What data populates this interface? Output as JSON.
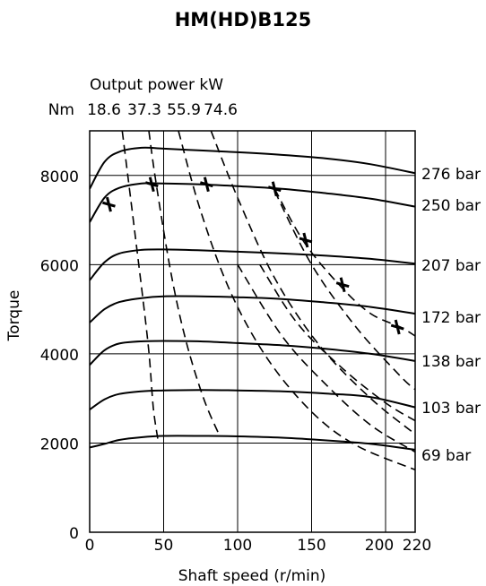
{
  "chart_data": {
    "type": "line",
    "title": "HM(HD)B125",
    "xlabel": "Shaft speed (r/min)",
    "ylabel": "Torque",
    "xlim": [
      0,
      220
    ],
    "ylim": [
      0,
      9000
    ],
    "x_ticks": [
      {
        "value": 0,
        "label": "0"
      },
      {
        "value": 50,
        "label": "50"
      },
      {
        "value": 100,
        "label": "100"
      },
      {
        "value": 150,
        "label": "150"
      },
      {
        "value": 200,
        "label": "200"
      },
      {
        "value": 220,
        "label": "220"
      }
    ],
    "y_ticks": [
      {
        "value": 0,
        "label": "0"
      },
      {
        "value": 2000,
        "label": "2000"
      },
      {
        "value": 4000,
        "label": "4000"
      },
      {
        "value": 6000,
        "label": "6000"
      },
      {
        "value": 8000,
        "label": "8000"
      }
    ],
    "vertical_gridlines": [
      50,
      100,
      150,
      200
    ],
    "horizontal_gridlines": [
      2000,
      4000,
      6000,
      8000
    ],
    "secondary_axis": {
      "title": "Output power kW",
      "unit_label": "Nm",
      "labels": [
        {
          "label": "18.6",
          "x": 4
        },
        {
          "label": "37.3",
          "x": 25
        },
        {
          "label": "55.9",
          "x": 50
        },
        {
          "label": "74.6",
          "x": 72
        }
      ]
    },
    "pressure_curves": [
      {
        "name": "276 bar",
        "x": [
          0,
          10,
          20,
          35,
          50,
          75,
          100,
          130,
          160,
          190,
          220
        ],
        "y": [
          7700,
          8300,
          8530,
          8620,
          8600,
          8560,
          8520,
          8460,
          8380,
          8250,
          8050
        ]
      },
      {
        "name": "250 bar",
        "x": [
          0,
          10,
          20,
          35,
          50,
          75,
          100,
          130,
          160,
          190,
          220
        ],
        "y": [
          6950,
          7500,
          7720,
          7820,
          7820,
          7800,
          7760,
          7700,
          7600,
          7480,
          7300
        ]
      },
      {
        "name": "207 bar",
        "x": [
          0,
          10,
          20,
          35,
          50,
          75,
          100,
          130,
          160,
          190,
          220
        ],
        "y": [
          5650,
          6050,
          6250,
          6330,
          6340,
          6320,
          6290,
          6250,
          6200,
          6130,
          6020
        ]
      },
      {
        "name": "172 bar",
        "x": [
          0,
          10,
          20,
          35,
          50,
          75,
          100,
          130,
          160,
          190,
          220
        ],
        "y": [
          4700,
          5000,
          5160,
          5250,
          5290,
          5290,
          5270,
          5230,
          5150,
          5050,
          4900
        ]
      },
      {
        "name": "138 bar",
        "x": [
          0,
          10,
          20,
          35,
          50,
          75,
          100,
          130,
          160,
          190,
          220
        ],
        "y": [
          3750,
          4080,
          4230,
          4280,
          4290,
          4280,
          4240,
          4190,
          4110,
          4000,
          3840
        ]
      },
      {
        "name": "103 bar",
        "x": [
          0,
          10,
          20,
          35,
          50,
          75,
          100,
          130,
          160,
          190,
          220
        ],
        "y": [
          2750,
          2980,
          3100,
          3160,
          3180,
          3190,
          3180,
          3160,
          3110,
          3030,
          2800
        ]
      },
      {
        "name": "69 bar",
        "x": [
          0,
          10,
          20,
          35,
          50,
          75,
          100,
          130,
          160,
          190,
          220
        ],
        "y": [
          1900,
          1980,
          2070,
          2130,
          2160,
          2160,
          2150,
          2120,
          2060,
          1980,
          1850
        ]
      }
    ],
    "power_curves": [
      {
        "label": "18.6",
        "x": [
          22,
          28,
          35,
          40,
          43,
          46
        ],
        "y": [
          9000,
          7400,
          5500,
          4050,
          2800,
          2100
        ]
      },
      {
        "label": "37.3",
        "x": [
          40,
          45,
          55,
          65,
          77,
          88
        ],
        "y": [
          9000,
          7800,
          5800,
          4300,
          3000,
          2150
        ]
      },
      {
        "label": "55.9",
        "x": [
          60,
          75,
          95,
          120,
          150,
          180,
          220
        ],
        "y": [
          9000,
          7200,
          5400,
          3900,
          2700,
          1950,
          1400
        ]
      },
      {
        "label": "74.6",
        "x": [
          82,
          100,
          125,
          155,
          190,
          220
        ],
        "y": [
          9000,
          7500,
          5700,
          4200,
          3000,
          2200
        ]
      },
      {
        "x": [
          100,
          130,
          160,
          190,
          220
        ],
        "y": [
          6000,
          4400,
          3300,
          2400,
          1800
        ]
      },
      {
        "x": [
          115,
          140,
          170,
          200,
          220
        ],
        "y": [
          6000,
          4700,
          3700,
          2900,
          2500
        ]
      },
      {
        "x": [
          125,
          150,
          180,
          210,
          220
        ],
        "y": [
          7650,
          6000,
          4600,
          3500,
          3200
        ]
      },
      {
        "x": [
          125,
          145,
          170,
          190,
          210,
          220
        ],
        "y": [
          7700,
          6500,
          5500,
          4900,
          4600,
          4400
        ]
      }
    ],
    "max_speed_points": [
      {
        "x": 13,
        "y": 7350
      },
      {
        "x": 42,
        "y": 7800
      },
      {
        "x": 79,
        "y": 7800
      },
      {
        "x": 125,
        "y": 7700
      },
      {
        "x": 146,
        "y": 6550
      },
      {
        "x": 171,
        "y": 5550
      },
      {
        "x": 208,
        "y": 4600
      }
    ]
  }
}
